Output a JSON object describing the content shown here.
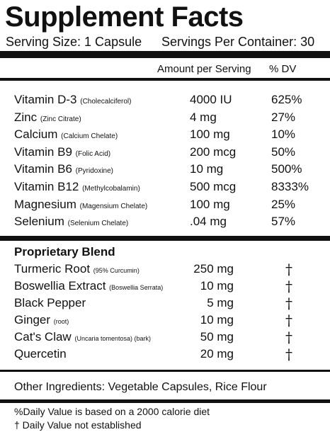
{
  "header": {
    "title": "Supplement Facts",
    "serving_size": "Serving Size: 1 Capsule",
    "servings_per_container": "Servings Per Container: 30"
  },
  "table": {
    "columns": [
      "Amount per Serving",
      "% DV"
    ],
    "rows": [
      {
        "name": "Vitamin D-3",
        "note": "(Cholecalciferol)",
        "amount": "4000 IU",
        "dv": "625%"
      },
      {
        "name": "Zinc",
        "note": "(Zinc Citrate)",
        "amount": "4 mg",
        "dv": "27%"
      },
      {
        "name": "Calcium",
        "note": "(Calcium Chelate)",
        "amount": "100 mg",
        "dv": "10%"
      },
      {
        "name": "Vitamin B9",
        "note": "(Folic Acid)",
        "amount": "200 mcg",
        "dv": "50%"
      },
      {
        "name": "Vitamin B6",
        "note": "(Pyridoxine)",
        "amount": "10 mg",
        "dv": "500%"
      },
      {
        "name": "Vitamin B12",
        "note": "(Methylcobalamin)",
        "amount": "500 mcg",
        "dv": "8333%"
      },
      {
        "name": "Magnesium",
        "note": "(Magensium Chelate)",
        "amount": "100 mg",
        "dv": "25%"
      },
      {
        "name": "Selenium",
        "note": "(Selenium Chelate)",
        "amount": ".04 mg",
        "dv": "57%"
      }
    ]
  },
  "blend": {
    "title": "Proprietary Blend",
    "rows": [
      {
        "name": "Turmeric Root",
        "note": "(95% Curcumin)",
        "amount": "250 mg",
        "dv": "†"
      },
      {
        "name": "Boswellia Extract",
        "note": "(Boswellia Serrata)",
        "amount": "10 mg",
        "dv": "†"
      },
      {
        "name": "Black Pepper",
        "amount": "5 mg",
        "dv": "†"
      },
      {
        "name": "Ginger",
        "note": "(root)",
        "amount": "10 mg",
        "dv": "†"
      },
      {
        "name": "Cat's Claw",
        "note": "(Uncaria tomentosa) (bark)",
        "amount": "50 mg",
        "dv": "†"
      },
      {
        "name": "Quercetin",
        "amount": "20 mg",
        "dv": "†"
      }
    ]
  },
  "other_ingredients": "Other Ingredients: Vegetable Capsules, Rice Flour",
  "footnotes": [
    "%Daily Value is based on a 2000 calorie diet",
    "† Daily Value not established"
  ]
}
